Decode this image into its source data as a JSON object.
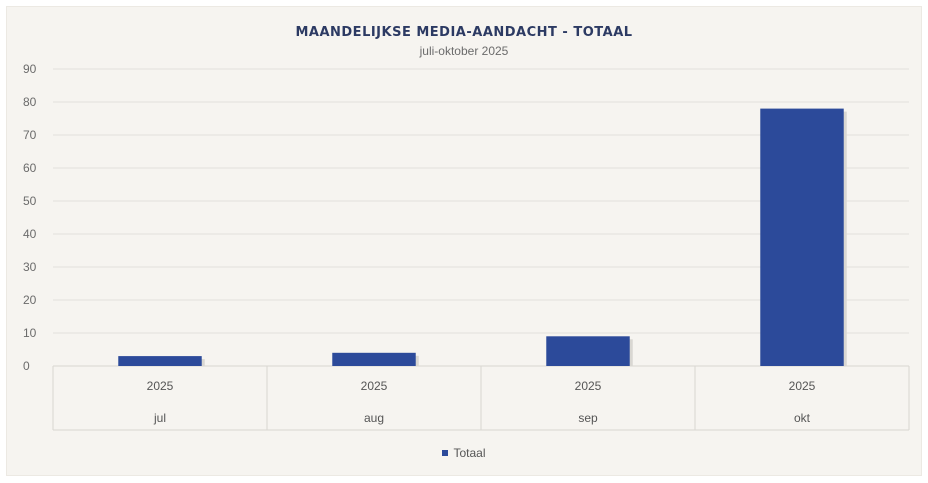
{
  "chart_data": {
    "type": "bar",
    "title": "MAANDELIJKSE MEDIA-AANDACHT - TOTAAL",
    "subtitle": "juli-oktober 2025",
    "categories": [
      {
        "year": "2025",
        "month": "jul"
      },
      {
        "year": "2025",
        "month": "aug"
      },
      {
        "year": "2025",
        "month": "sep"
      },
      {
        "year": "2025",
        "month": "okt"
      }
    ],
    "series": [
      {
        "name": "Totaal",
        "values": [
          3,
          4,
          9,
          78
        ],
        "color": "#2c4a9a"
      }
    ],
    "ylim": [
      0,
      90
    ],
    "yticks": [
      "0",
      "10",
      "20",
      "30",
      "40",
      "50",
      "60",
      "70",
      "80",
      "90"
    ],
    "grid": true,
    "legend_position": "bottom"
  }
}
